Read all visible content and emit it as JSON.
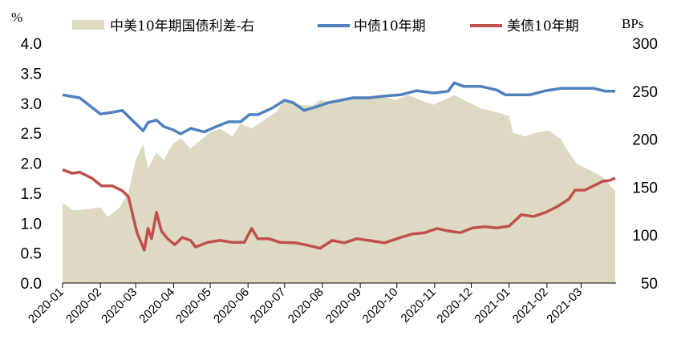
{
  "chart_data": {
    "type": "line",
    "title": "",
    "y_left": {
      "unit": "%",
      "range": [
        0,
        4.0
      ],
      "ticks": [
        "4.0",
        "3.5",
        "3.0",
        "2.5",
        "2.0",
        "1.5",
        "1.0",
        "0.5",
        "0.0"
      ]
    },
    "y_right": {
      "unit": "BPs",
      "range": [
        50,
        300
      ],
      "ticks": [
        "300",
        "250",
        "200",
        "150",
        "100",
        "50"
      ]
    },
    "x_axis": {
      "range": [
        "2020-01-01",
        "2021-03-29"
      ],
      "ticks": [
        "2020-01",
        "2020-02",
        "2020-03",
        "2020-04",
        "2020-05",
        "2020-06",
        "2020-07",
        "2020-08",
        "2020-09",
        "2020-10",
        "2020-11",
        "2020-12",
        "2021-01",
        "2021-02",
        "2021-03"
      ]
    },
    "grid": false,
    "legend": "top",
    "series": [
      {
        "name": "中美10年期国债利差-右",
        "kind": "area",
        "axis": "right",
        "color": "#ddd9c3",
        "points": [
          [
            "2020-01-01",
            134
          ],
          [
            "2020-01-09",
            126
          ],
          [
            "2020-01-15",
            126
          ],
          [
            "2020-02-01",
            129
          ],
          [
            "2020-02-07",
            119
          ],
          [
            "2020-02-17",
            129
          ],
          [
            "2020-02-24",
            144
          ],
          [
            "2020-03-01",
            178
          ],
          [
            "2020-03-07",
            195
          ],
          [
            "2020-03-11",
            170
          ],
          [
            "2020-03-18",
            186
          ],
          [
            "2020-03-24",
            178
          ],
          [
            "2020-03-31",
            195
          ],
          [
            "2020-04-07",
            201
          ],
          [
            "2020-04-15",
            190
          ],
          [
            "2020-04-23",
            199
          ],
          [
            "2020-05-01",
            207
          ],
          [
            "2020-05-09",
            211
          ],
          [
            "2020-05-19",
            203
          ],
          [
            "2020-05-26",
            216
          ],
          [
            "2020-06-04",
            211
          ],
          [
            "2020-06-14",
            220
          ],
          [
            "2020-06-24",
            228
          ],
          [
            "2020-07-01",
            241
          ],
          [
            "2020-07-10",
            236
          ],
          [
            "2020-07-24",
            235
          ],
          [
            "2020-07-30",
            241
          ],
          [
            "2020-08-12",
            238
          ],
          [
            "2020-08-26",
            245
          ],
          [
            "2020-09-08",
            243
          ],
          [
            "2020-09-18",
            245
          ],
          [
            "2020-09-30",
            241
          ],
          [
            "2020-10-10",
            246
          ],
          [
            "2020-10-20",
            241
          ],
          [
            "2020-10-31",
            236
          ],
          [
            "2020-11-09",
            241
          ],
          [
            "2020-11-17",
            246
          ],
          [
            "2020-11-25",
            241
          ],
          [
            "2020-12-09",
            232
          ],
          [
            "2020-12-22",
            228
          ],
          [
            "2021-01-01",
            224
          ],
          [
            "2021-01-04",
            207
          ],
          [
            "2021-01-14",
            203
          ],
          [
            "2021-01-24",
            207
          ],
          [
            "2021-02-03",
            209
          ],
          [
            "2021-02-13",
            199
          ],
          [
            "2021-02-19",
            186
          ],
          [
            "2021-02-26",
            174
          ],
          [
            "2021-03-08",
            168
          ],
          [
            "2021-03-18",
            161
          ],
          [
            "2021-03-29",
            146
          ]
        ]
      },
      {
        "name": "中债10年期",
        "kind": "line",
        "axis": "left",
        "color": "#4f81bd",
        "points": [
          [
            "2020-01-01",
            3.14
          ],
          [
            "2020-01-15",
            3.09
          ],
          [
            "2020-01-22",
            2.98
          ],
          [
            "2020-02-01",
            2.82
          ],
          [
            "2020-02-11",
            2.85
          ],
          [
            "2020-02-19",
            2.88
          ],
          [
            "2020-02-27",
            2.72
          ],
          [
            "2020-03-07",
            2.54
          ],
          [
            "2020-03-11",
            2.68
          ],
          [
            "2020-03-18",
            2.72
          ],
          [
            "2020-03-24",
            2.61
          ],
          [
            "2020-03-31",
            2.56
          ],
          [
            "2020-04-07",
            2.49
          ],
          [
            "2020-04-15",
            2.58
          ],
          [
            "2020-04-26",
            2.52
          ],
          [
            "2020-05-06",
            2.61
          ],
          [
            "2020-05-16",
            2.69
          ],
          [
            "2020-05-26",
            2.69
          ],
          [
            "2020-06-02",
            2.81
          ],
          [
            "2020-06-09",
            2.81
          ],
          [
            "2020-06-21",
            2.92
          ],
          [
            "2020-07-01",
            3.05
          ],
          [
            "2020-07-08",
            3.01
          ],
          [
            "2020-07-17",
            2.88
          ],
          [
            "2020-07-27",
            2.94
          ],
          [
            "2020-08-06",
            3.01
          ],
          [
            "2020-08-16",
            3.05
          ],
          [
            "2020-08-26",
            3.09
          ],
          [
            "2020-09-08",
            3.09
          ],
          [
            "2020-09-21",
            3.12
          ],
          [
            "2020-10-04",
            3.14
          ],
          [
            "2020-10-17",
            3.21
          ],
          [
            "2020-10-31",
            3.17
          ],
          [
            "2020-11-12",
            3.2
          ],
          [
            "2020-11-17",
            3.34
          ],
          [
            "2020-11-25",
            3.28
          ],
          [
            "2020-12-09",
            3.28
          ],
          [
            "2020-12-22",
            3.22
          ],
          [
            "2020-12-29",
            3.14
          ],
          [
            "2021-01-08",
            3.14
          ],
          [
            "2021-01-18",
            3.14
          ],
          [
            "2021-01-31",
            3.21
          ],
          [
            "2021-02-13",
            3.25
          ],
          [
            "2021-02-26",
            3.25
          ],
          [
            "2021-03-11",
            3.25
          ],
          [
            "2021-03-21",
            3.2
          ],
          [
            "2021-03-29",
            3.2
          ]
        ]
      },
      {
        "name": "美债10年期",
        "kind": "line",
        "axis": "left",
        "color": "#c0504d",
        "points": [
          [
            "2020-01-01",
            1.89
          ],
          [
            "2020-01-09",
            1.83
          ],
          [
            "2020-01-15",
            1.85
          ],
          [
            "2020-01-25",
            1.75
          ],
          [
            "2020-02-02",
            1.62
          ],
          [
            "2020-02-11",
            1.62
          ],
          [
            "2020-02-19",
            1.54
          ],
          [
            "2020-02-24",
            1.44
          ],
          [
            "2020-02-27",
            1.18
          ],
          [
            "2020-03-02",
            0.84
          ],
          [
            "2020-03-08",
            0.55
          ],
          [
            "2020-03-11",
            0.91
          ],
          [
            "2020-03-14",
            0.74
          ],
          [
            "2020-03-18",
            1.18
          ],
          [
            "2020-03-22",
            0.87
          ],
          [
            "2020-03-27",
            0.74
          ],
          [
            "2020-04-02",
            0.64
          ],
          [
            "2020-04-08",
            0.76
          ],
          [
            "2020-04-15",
            0.71
          ],
          [
            "2020-04-19",
            0.6
          ],
          [
            "2020-04-29",
            0.68
          ],
          [
            "2020-05-09",
            0.71
          ],
          [
            "2020-05-19",
            0.68
          ],
          [
            "2020-05-29",
            0.68
          ],
          [
            "2020-06-04",
            0.91
          ],
          [
            "2020-06-09",
            0.74
          ],
          [
            "2020-06-18",
            0.74
          ],
          [
            "2020-06-27",
            0.68
          ],
          [
            "2020-07-10",
            0.67
          ],
          [
            "2020-07-20",
            0.63
          ],
          [
            "2020-07-30",
            0.58
          ],
          [
            "2020-08-09",
            0.71
          ],
          [
            "2020-08-19",
            0.67
          ],
          [
            "2020-08-29",
            0.74
          ],
          [
            "2020-09-08",
            0.71
          ],
          [
            "2020-09-21",
            0.67
          ],
          [
            "2020-10-04",
            0.76
          ],
          [
            "2020-10-14",
            0.82
          ],
          [
            "2020-10-24",
            0.84
          ],
          [
            "2020-11-03",
            0.91
          ],
          [
            "2020-11-12",
            0.87
          ],
          [
            "2020-11-22",
            0.84
          ],
          [
            "2020-12-02",
            0.92
          ],
          [
            "2020-12-12",
            0.94
          ],
          [
            "2020-12-22",
            0.92
          ],
          [
            "2021-01-01",
            0.95
          ],
          [
            "2021-01-11",
            1.14
          ],
          [
            "2021-01-21",
            1.11
          ],
          [
            "2021-01-31",
            1.18
          ],
          [
            "2021-02-09",
            1.27
          ],
          [
            "2021-02-19",
            1.4
          ],
          [
            "2021-02-24",
            1.55
          ],
          [
            "2021-03-04",
            1.55
          ],
          [
            "2021-03-14",
            1.65
          ],
          [
            "2021-03-19",
            1.7
          ],
          [
            "2021-03-24",
            1.71
          ],
          [
            "2021-03-29",
            1.75
          ]
        ]
      }
    ]
  }
}
